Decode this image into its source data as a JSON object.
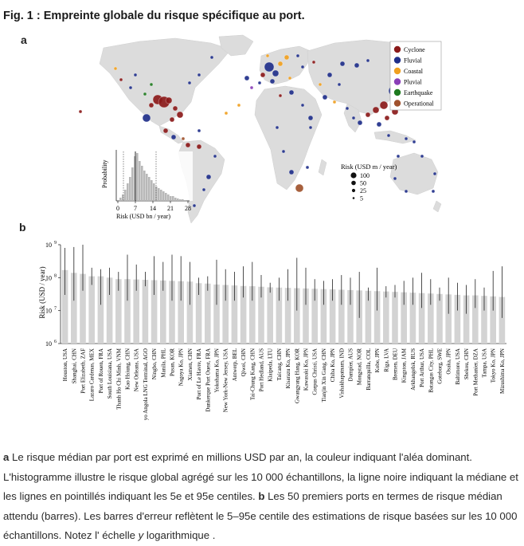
{
  "figure_title": "Fig. 1 : Empreinte globale du risque spécifique au port.",
  "panel_a_label": "a",
  "panel_b_label": "b",
  "legend": {
    "hazards": [
      {
        "name": "Cyclone",
        "color": "#8b1a1a"
      },
      {
        "name": "Fluvial",
        "color": "#1f2f8a"
      },
      {
        "name": "Coastal",
        "color": "#f0a020"
      },
      {
        "name": "Pluvial",
        "color": "#8a3fb8"
      },
      {
        "name": "Earthquake",
        "color": "#1f7a1f"
      },
      {
        "name": "Operational",
        "color": "#a0522d"
      }
    ],
    "size_title": "Risk (USD m / year)",
    "sizes": [
      "100",
      "50",
      "25",
      "5"
    ]
  },
  "inset": {
    "ylabel": "Probability",
    "xlabel": "Risk (USD bn / year)",
    "xticks": [
      "0",
      "7",
      "14",
      "21",
      "28"
    ]
  },
  "chart_data": {
    "type": "bar",
    "ylabel": "Risk (USD / year)",
    "yscale": "log",
    "ylim": [
      1000000,
      1000000000
    ],
    "yticks": [
      {
        "base": "10",
        "exp": "6",
        "value": 1000000
      },
      {
        "base": "10",
        "exp": "7",
        "value": 10000000
      },
      {
        "base": "10",
        "exp": "8",
        "value": 100000000
      },
      {
        "base": "10",
        "exp": "9",
        "value": 1000000000
      }
    ],
    "categories": [
      "Houston, USA",
      "Shanghai, CHN",
      "Port Elizabeth, ZAF",
      "Lazaro Cardenas, MEX",
      "Port of Rouen, FRA",
      "South Louisiana, USA",
      "Thanh Ho Chi Minh, VNM",
      "Kao Hsiung, CHN",
      "New Orleans, USA",
      "Soyo Angola LNG Terminal, AGO",
      "Ningbo, CHN",
      "Manila, PHL",
      "Pusan, KOR",
      "Nagoya Ko, JPN",
      "Xiamen, CHN",
      "Port of Le Havre, FRA",
      "Dunkerque Port Ouest, FRA",
      "Yokohama Ko, JPN",
      "New York-New Jersey, USA",
      "Antwerp, BEL",
      "Qiwei, CHN",
      "Tai-Chung Kang, CHN",
      "Port Hedland, AUS",
      "Klaipeda, LTU",
      "Taicang, CHN",
      "Kisarazu Ko, JPN",
      "Gwangyang Hang, KOR",
      "Kawasaki Ko, JPN",
      "Corpus Christi, USA",
      "Tianjin Xin Gang, CHN",
      "Chiba Ko, JPN",
      "Vishakhapatnam, IND",
      "Dampier, AUS",
      "Mongstad, NOR",
      "Barranquilla, COL",
      "Kobe, JPN",
      "Riga, LVA",
      "Bremen, DEU",
      "Kingston, JAM",
      "Arkhangelsk, RUS",
      "Port Arthur, USA",
      "Batangas City, PHL",
      "Goteborg, SWE",
      "Osaka, JPN",
      "Baltimore, USA",
      "Shekou, CHN",
      "Port Methanier, DZA",
      "Tampa, USA",
      "Tokyo Ko, JPN",
      "Mizushima Ko, JPN"
    ],
    "values": [
      170000000,
      140000000,
      130000000,
      110000000,
      110000000,
      100000000,
      90000000,
      90000000,
      88000000,
      86000000,
      84000000,
      82000000,
      80000000,
      78000000,
      76000000,
      68000000,
      66000000,
      62000000,
      60000000,
      58000000,
      56000000,
      55000000,
      53000000,
      51000000,
      50000000,
      49000000,
      48000000,
      47000000,
      46000000,
      45000000,
      44000000,
      43000000,
      42000000,
      41000000,
      40000000,
      39000000,
      38000000,
      37000000,
      36000000,
      35000000,
      34000000,
      33000000,
      32000000,
      31000000,
      30000000,
      29000000,
      29000000,
      28000000,
      27000000,
      26000000
    ],
    "error_low": [
      30000000,
      20000000,
      40000000,
      60000000,
      15000000,
      30000000,
      40000000,
      20000000,
      40000000,
      55000000,
      30000000,
      40000000,
      20000000,
      20000000,
      15000000,
      30000000,
      40000000,
      15000000,
      20000000,
      20000000,
      25000000,
      20000000,
      25000000,
      35000000,
      20000000,
      20000000,
      10000000,
      15000000,
      20000000,
      15000000,
      20000000,
      15000000,
      15000000,
      6000000,
      20000000,
      10000000,
      25000000,
      25000000,
      15000000,
      15000000,
      12000000,
      15000000,
      20000000,
      8000000,
      10000000,
      8000000,
      12000000,
      10000000,
      10000000,
      6000000
    ],
    "error_high": [
      800000000,
      850000000,
      1000000000,
      200000000,
      180000000,
      200000000,
      150000000,
      500000000,
      250000000,
      150000000,
      450000000,
      300000000,
      500000000,
      450000000,
      300000000,
      100000000,
      110000000,
      350000000,
      180000000,
      150000000,
      220000000,
      300000000,
      120000000,
      70000000,
      100000000,
      180000000,
      400000000,
      200000000,
      90000000,
      80000000,
      90000000,
      120000000,
      100000000,
      150000000,
      50000000,
      200000000,
      55000000,
      60000000,
      80000000,
      100000000,
      140000000,
      90000000,
      50000000,
      100000000,
      70000000,
      60000000,
      90000000,
      50000000,
      160000000,
      220000000
    ]
  },
  "caption": {
    "a_bold": "a",
    "a_text": " Le risque médian par port est exprimé en millions USD par an, la couleur indiquant l'aléa dominant. L'histogramme illustre le risque global agrégé sur les 10 000 échantillons, la ligne noire indiquant la médiane et les lignes en pointillés indiquant les 5e et 95e centiles. ",
    "b_bold": "b",
    "b_text": " Les 50 premiers ports en termes de risque médian attendu (barres). Les barres d'erreur reflètent le 5–95e centile des estimations de risque basées sur les 10 000 échantillons. Notez l' échelle ",
    "b_axis": "y",
    "b_end": " logarithmique ."
  }
}
